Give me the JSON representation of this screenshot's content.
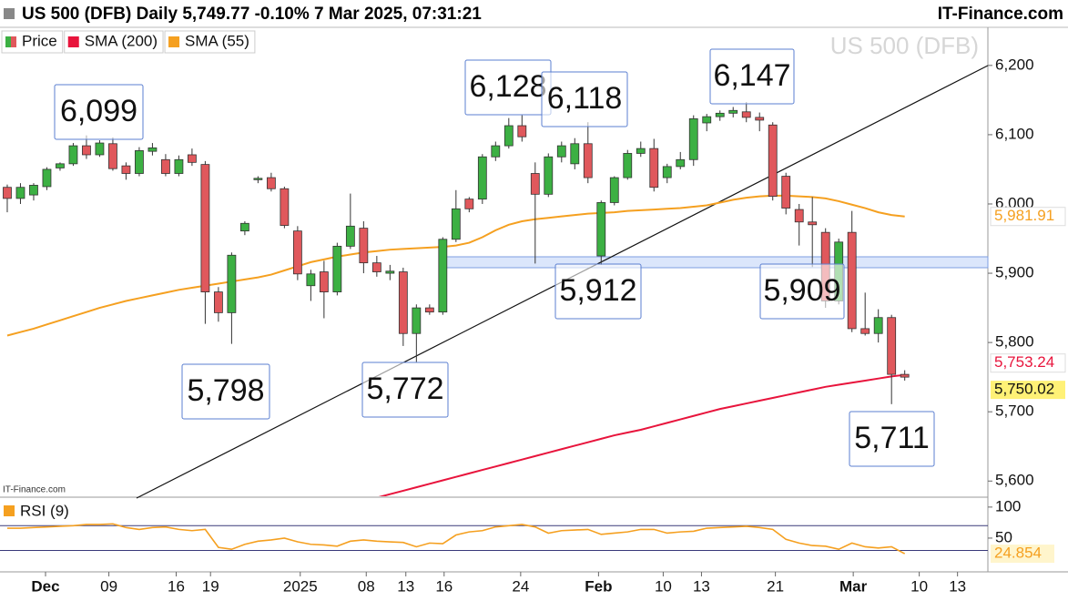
{
  "chart_data": {
    "type": "candlestick",
    "title": "US 500 (DFB) Daily 5,749.77 -0.10% 7 Mar 2025, 07:31:21",
    "source": "IT-Finance.com",
    "watermark": "US 500 (DFB)",
    "credit": "IT-Finance.com",
    "candles": {
      "name": "Price",
      "up_color": "#3cb043",
      "down_color": "#e0585c",
      "last_label": "5,750.02",
      "open": [
        6024,
        6008,
        6013,
        6025,
        6052,
        6058,
        6084,
        6071,
        6087,
        6055,
        6044,
        6076,
        6064,
        6044,
        6071,
        6057,
        5873,
        5843,
        5961,
        6035,
        6038,
        6022,
        5961,
        5882,
        5902,
        5873,
        5939,
        5965,
        5915,
        5900,
        5902,
        5813,
        5850,
        5844,
        5949,
        6007,
        6007,
        6068,
        6084,
        6113,
        6044,
        6014,
        6068,
        6058,
        6087,
        5925,
        6002,
        6038,
        6073,
        6080,
        6038,
        6054,
        6064,
        6117,
        6126,
        6131,
        6133,
        6125,
        6114,
        6040,
        5992,
        5974,
        5959,
        5860,
        5959,
        5820,
        5813,
        5836,
        5754
      ],
      "high": [
        6028,
        6030,
        6030,
        6053,
        6060,
        6088,
        6099,
        6092,
        6096,
        6060,
        6082,
        6088,
        6072,
        6070,
        6080,
        6062,
        5880,
        5930,
        5975,
        6040,
        6045,
        6025,
        5968,
        5905,
        5918,
        5944,
        6015,
        5975,
        5925,
        5912,
        5908,
        5855,
        5855,
        5952,
        6020,
        6010,
        6072,
        6090,
        6124,
        6128,
        6060,
        6073,
        6090,
        6095,
        6118,
        6005,
        6040,
        6078,
        6090,
        6094,
        6058,
        6075,
        6128,
        6130,
        6135,
        6140,
        6147,
        6132,
        6118,
        6045,
        6000,
        6010,
        5965,
        5950,
        5990,
        5872,
        5848,
        5840,
        5760
      ],
      "low": [
        5988,
        6000,
        6005,
        6020,
        6048,
        6055,
        6065,
        6068,
        6048,
        6035,
        6040,
        6070,
        6040,
        6040,
        6055,
        5827,
        5830,
        5798,
        5955,
        6030,
        6018,
        5965,
        5890,
        5860,
        5835,
        5868,
        5935,
        5900,
        5895,
        5890,
        5795,
        5772,
        5840,
        5840,
        5945,
        5988,
        6000,
        6062,
        6080,
        6090,
        5914,
        6010,
        6060,
        6050,
        6030,
        5912,
        5998,
        6035,
        6068,
        6018,
        6030,
        6050,
        6055,
        6105,
        6120,
        6125,
        6118,
        6105,
        6005,
        5985,
        5940,
        5909,
        5850,
        5855,
        5815,
        5810,
        5800,
        5711,
        5745
      ],
      "close": [
        6008,
        6024,
        6027,
        6050,
        6058,
        6084,
        6071,
        6088,
        6051,
        6044,
        6077,
        6081,
        6044,
        6064,
        6060,
        5873,
        5843,
        5926,
        5972,
        6037,
        6022,
        5969,
        5899,
        5899,
        5873,
        5939,
        5968,
        5915,
        5902,
        5903,
        5813,
        5850,
        5844,
        5949,
        5993,
        5993,
        6068,
        6084,
        6113,
        6097,
        6014,
        6068,
        6084,
        6087,
        6038,
        6002,
        6038,
        6073,
        6080,
        6024,
        6054,
        6064,
        6123,
        6126,
        6131,
        6135,
        6125,
        6121,
        6011,
        5994,
        5974,
        5970,
        5860,
        5945,
        5820,
        5813,
        5836,
        5754,
        5750.02
      ]
    },
    "series": [
      {
        "name": "SMA (200)",
        "color": "#e8143c",
        "last_label": "5,753.24",
        "values": [
          null,
          null,
          null,
          null,
          null,
          null,
          null,
          null,
          null,
          null,
          null,
          null,
          null,
          null,
          null,
          null,
          null,
          null,
          null,
          null,
          null,
          null,
          null,
          null,
          null,
          null,
          null,
          null,
          5576,
          5581,
          5586,
          5591,
          5596,
          5601,
          5606,
          5611,
          5616,
          5621,
          5626,
          5631,
          5636,
          5641,
          5646,
          5651,
          5656,
          5661,
          5666,
          5670,
          5674,
          5679,
          5684,
          5689,
          5694,
          5699,
          5704,
          5708,
          5712,
          5716,
          5720,
          5724,
          5728,
          5732,
          5736,
          5739,
          5742,
          5745,
          5748,
          5751,
          5753.24
        ]
      },
      {
        "name": "SMA (55)",
        "color": "#f5a020",
        "last_label": "5,981.91",
        "values": [
          5810,
          5815,
          5820,
          5826,
          5832,
          5838,
          5844,
          5850,
          5855,
          5860,
          5864,
          5868,
          5872,
          5876,
          5879,
          5882,
          5885,
          5888,
          5891,
          5894,
          5898,
          5904,
          5910,
          5916,
          5920,
          5924,
          5927,
          5930,
          5932,
          5934,
          5935,
          5936,
          5937,
          5938,
          5940,
          5944,
          5952,
          5962,
          5970,
          5975,
          5978,
          5980,
          5982,
          5984,
          5986,
          5987,
          5988,
          5990,
          5991,
          5992,
          5993,
          5994,
          5996,
          5998,
          6002,
          6006,
          6009,
          6011,
          6012,
          6012,
          6011,
          6010,
          6008,
          6004,
          5999,
          5994,
          5988,
          5984,
          5981.91
        ]
      }
    ],
    "xlim": [
      -0.55,
      74.3
    ],
    "xticks": [
      {
        "value": 2.9,
        "label": "Dec"
      },
      {
        "value": 7.7,
        "label": "09"
      },
      {
        "value": 12.8,
        "label": "16"
      },
      {
        "value": 15.4,
        "label": "19"
      },
      {
        "value": 22.2,
        "label": "2025"
      },
      {
        "value": 27.2,
        "label": "08"
      },
      {
        "value": 30.2,
        "label": "13"
      },
      {
        "value": 33.1,
        "label": "16"
      },
      {
        "value": 38.9,
        "label": "24"
      },
      {
        "value": 44.8,
        "label": "Feb"
      },
      {
        "value": 49.7,
        "label": "10"
      },
      {
        "value": 52.6,
        "label": "13"
      },
      {
        "value": 58.2,
        "label": "21"
      },
      {
        "value": 64.1,
        "label": "Mar"
      },
      {
        "value": 69.1,
        "label": "10"
      },
      {
        "value": 72.0,
        "label": "13"
      }
    ],
    "ylim": [
      5578,
      6255
    ],
    "yticks": [
      {
        "value": 5600,
        "label": "5,600"
      },
      {
        "value": 5700,
        "label": "5,700"
      },
      {
        "value": 5800,
        "label": "5,800"
      },
      {
        "value": 5900,
        "label": "5,900"
      },
      {
        "value": 6000,
        "label": "6,000"
      },
      {
        "value": 6100,
        "label": "6,100"
      },
      {
        "value": 6200,
        "label": "6,200"
      }
    ],
    "annotations": [
      {
        "value": 6099,
        "label": "6,099"
      },
      {
        "value": 6128,
        "label": "6,128"
      },
      {
        "value": 6118,
        "label": "6,118"
      },
      {
        "value": 6147,
        "label": "6,147"
      },
      {
        "value": 5798,
        "label": "5,798"
      },
      {
        "value": 5772,
        "label": "5,772"
      },
      {
        "value": 5912,
        "label": "5,912"
      },
      {
        "value": 5909,
        "label": "5,909"
      },
      {
        "value": 5711,
        "label": "5,711"
      }
    ],
    "rsi": {
      "name": "RSI (9)",
      "color": "#f5a020",
      "last_label": "24.854",
      "ylim": [
        -4.4,
        113
      ],
      "yticks": [
        50,
        100
      ],
      "levels": [
        30,
        70
      ],
      "values": [
        66,
        66,
        67,
        68,
        69,
        70,
        72,
        72,
        73,
        67,
        64,
        67,
        68,
        64,
        62,
        64,
        35,
        32,
        40,
        45,
        47,
        50,
        44,
        40,
        39,
        37,
        45,
        47,
        45,
        44,
        43,
        36,
        42,
        41,
        55,
        60,
        62,
        68,
        70,
        72,
        68,
        58,
        62,
        63,
        64,
        56,
        58,
        60,
        64,
        64,
        58,
        60,
        61,
        66,
        67,
        68,
        69,
        67,
        64,
        48,
        42,
        38,
        37,
        32,
        42,
        36,
        34,
        36,
        24.854
      ]
    }
  }
}
